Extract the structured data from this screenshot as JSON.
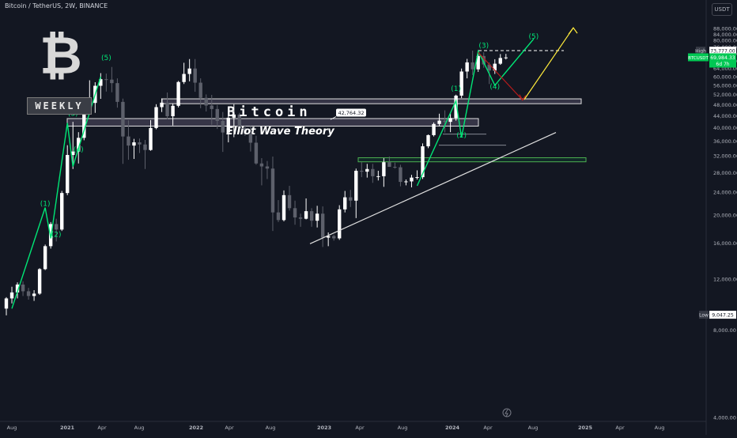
{
  "header": {
    "symbol_title": "Bitcoin / TetherUS, 2W, BINANCE",
    "logo_glyph": "₿",
    "timeframe_badge": "WEEKLY",
    "headline": "Bitcoin",
    "subheadline": "Elliot Wave Theory",
    "currency_button": "USDT"
  },
  "colors": {
    "background": "#131722",
    "up_candle": "#ffffff",
    "down_candle": "#5d606b",
    "wave_green": "#00e676",
    "yellow_projection": "#ffeb3b",
    "red_projection": "#b71c1c",
    "price_badge": "#00c853"
  },
  "chart_data": {
    "type": "candlestick",
    "title": "Bitcoin",
    "subtitle": "Elliot Wave Theory",
    "ylim": [
      4000,
      92000
    ],
    "scale": "log",
    "y_ticks": [
      "4,000.00",
      "8,000.00",
      "12,000.00",
      "16,000.00",
      "20,000.00",
      "24,000.00",
      "28,000.00",
      "32,000.00",
      "36,000.00",
      "40,000.00",
      "44,000.00",
      "48,000.00",
      "52,000.00",
      "56,000.00",
      "60,000.00",
      "64,000.00",
      "68,000.00",
      "72,000.00",
      "76,000.00",
      "80,000.00",
      "84,000.00",
      "88,000.00"
    ],
    "y_tick_values": [
      4000,
      8000,
      12000,
      16000,
      20000,
      24000,
      28000,
      32000,
      36000,
      40000,
      44000,
      48000,
      52000,
      56000,
      60000,
      64000,
      68000,
      72000,
      76000,
      80000,
      84000,
      88000
    ],
    "x_ticks": [
      "Aug",
      "2021",
      "Apr",
      "Aug",
      "2022",
      "Apr",
      "Aug",
      "2023",
      "Apr",
      "Aug",
      "2024",
      "Apr",
      "Aug",
      "2025",
      "Apr",
      "Aug"
    ],
    "x_tick_bold": [
      false,
      true,
      false,
      false,
      true,
      false,
      false,
      true,
      false,
      false,
      true,
      false,
      false,
      true,
      false,
      false
    ],
    "candles": [
      [
        9500,
        10400,
        9000,
        10300
      ],
      [
        10300,
        11300,
        9900,
        10800
      ],
      [
        10800,
        11700,
        10300,
        11500
      ],
      [
        11500,
        11800,
        10500,
        10900
      ],
      [
        10900,
        11200,
        10200,
        10500
      ],
      [
        10500,
        11000,
        10100,
        10700
      ],
      [
        10700,
        13100,
        10600,
        13000
      ],
      [
        13000,
        15800,
        12900,
        15600
      ],
      [
        15600,
        18900,
        15300,
        18600
      ],
      [
        18600,
        19400,
        16200,
        17800
      ],
      [
        17800,
        24200,
        17600,
        23800
      ],
      [
        23800,
        34800,
        23400,
        32200
      ],
      [
        32200,
        41900,
        28800,
        33100
      ],
      [
        33100,
        38600,
        30100,
        36900
      ],
      [
        36900,
        48200,
        36200,
        46300
      ],
      [
        46300,
        58300,
        45000,
        48700
      ],
      [
        48700,
        57400,
        45000,
        55800
      ],
      [
        55800,
        61700,
        50300,
        58800
      ],
      [
        58800,
        61500,
        53300,
        58600
      ],
      [
        58600,
        64800,
        53000,
        57000
      ],
      [
        57000,
        59200,
        46900,
        49100
      ],
      [
        49100,
        50400,
        30000,
        37300
      ],
      [
        37300,
        42400,
        31000,
        34700
      ],
      [
        34700,
        36600,
        31200,
        35600
      ],
      [
        35600,
        36700,
        32700,
        35000
      ],
      [
        35000,
        36300,
        28800,
        33500
      ],
      [
        33500,
        42500,
        33300,
        39900
      ],
      [
        39900,
        48200,
        39500,
        47100
      ],
      [
        47100,
        50500,
        45300,
        48800
      ],
      [
        48800,
        52900,
        42800,
        43800
      ],
      [
        43800,
        48500,
        40700,
        47600
      ],
      [
        47600,
        58000,
        47000,
        57500
      ],
      [
        57500,
        67000,
        56600,
        61300
      ],
      [
        61300,
        69000,
        57800,
        64000
      ],
      [
        64000,
        69000,
        53200,
        57200
      ],
      [
        57200,
        59200,
        46700,
        50700
      ],
      [
        50700,
        52100,
        45500,
        47700
      ],
      [
        47700,
        51900,
        40900,
        46400
      ],
      [
        46400,
        47900,
        39600,
        42200
      ],
      [
        42200,
        45300,
        33000,
        38500
      ],
      [
        38500,
        45700,
        35600,
        43300
      ],
      [
        43300,
        48200,
        37100,
        44400
      ],
      [
        44400,
        45000,
        38600,
        39800
      ],
      [
        39800,
        40800,
        37500,
        38100
      ],
      [
        38100,
        40500,
        33100,
        35500
      ],
      [
        35500,
        37500,
        29800,
        30100
      ],
      [
        30100,
        31400,
        25300,
        29400
      ],
      [
        29400,
        30700,
        26600,
        28900
      ],
      [
        28900,
        31800,
        17600,
        20400
      ],
      [
        20400,
        22500,
        18900,
        19200
      ],
      [
        19200,
        24300,
        19000,
        23400
      ],
      [
        23400,
        25200,
        20700,
        21100
      ],
      [
        21100,
        22400,
        18500,
        19600
      ],
      [
        19600,
        20200,
        18200,
        19400
      ],
      [
        19400,
        22800,
        19300,
        20600
      ],
      [
        20600,
        21100,
        18200,
        19100
      ],
      [
        19100,
        21500,
        18100,
        20200
      ],
      [
        20200,
        21400,
        15500,
        16700
      ],
      [
        16700,
        17400,
        15600,
        16900
      ],
      [
        16900,
        17100,
        16300,
        16600
      ],
      [
        16600,
        21600,
        16400,
        20900
      ],
      [
        20900,
        24200,
        20400,
        23000
      ],
      [
        23000,
        24400,
        21300,
        22400
      ],
      [
        22400,
        28900,
        19500,
        28400
      ],
      [
        28400,
        30400,
        27000,
        28200
      ],
      [
        28200,
        30000,
        26900,
        28800
      ],
      [
        28800,
        30000,
        25800,
        27200
      ],
      [
        27200,
        28400,
        26300,
        27200
      ],
      [
        27200,
        31400,
        25000,
        30400
      ],
      [
        30400,
        31800,
        29900,
        29300
      ],
      [
        29300,
        30300,
        28900,
        29200
      ],
      [
        29200,
        29800,
        25100,
        26000
      ],
      [
        26000,
        26500,
        25300,
        26100
      ],
      [
        26100,
        27500,
        24900,
        26900
      ],
      [
        26900,
        28500,
        26500,
        27000
      ],
      [
        27000,
        35300,
        26600,
        34500
      ],
      [
        34500,
        37900,
        34000,
        37700
      ],
      [
        37700,
        41700,
        37300,
        41200
      ],
      [
        41200,
        44700,
        40600,
        42300
      ],
      [
        42300,
        45900,
        38500,
        41900
      ],
      [
        41900,
        44800,
        38600,
        43200
      ],
      [
        43200,
        52000,
        42300,
        51600
      ],
      [
        51600,
        64000,
        50600,
        62500
      ],
      [
        62500,
        69100,
        59200,
        67200
      ],
      [
        67200,
        73800,
        60800,
        63600
      ],
      [
        63600,
        71800,
        62300,
        70700
      ],
      [
        70700,
        72800,
        64400,
        66100
      ],
      [
        66100,
        67200,
        56600,
        63000
      ],
      [
        63000,
        68900,
        61300,
        66500
      ],
      [
        66500,
        71800,
        65900,
        69600
      ],
      [
        69600,
        71900,
        68800,
        69900
      ]
    ],
    "levels": {
      "high": "73,777.00",
      "last": "69,984.33",
      "countdown": "6d 7h",
      "low": "9,047.25",
      "zone_label": "42,764.32"
    },
    "zones": [
      {
        "name": "upper-resistance",
        "from": 48400,
        "to": 50300
      },
      {
        "name": "lower-resistance",
        "from": 40500,
        "to": 43000
      },
      {
        "name": "green-support",
        "from": 30500,
        "to": 31500
      }
    ],
    "wave_labels": [
      "(1)",
      "(2)",
      "(3)",
      "(4)",
      "(5)",
      "(1)",
      "(2)",
      "(3)",
      "(4)",
      "(5)",
      "(1)",
      "(2)",
      "(3)",
      "(4)",
      "(5)"
    ],
    "wave_label_values": [
      [
        21500,
        "(1)"
      ],
      [
        16800,
        "(2)"
      ],
      [
        44000,
        "(3)"
      ],
      [
        33000,
        "(4)"
      ],
      [
        68500,
        "(5)"
      ],
      [
        53500,
        "(1)"
      ],
      [
        37000,
        "(2)"
      ],
      [
        75500,
        "(3)"
      ],
      [
        54500,
        "(4)"
      ],
      [
        81000,
        "(5)"
      ]
    ]
  }
}
